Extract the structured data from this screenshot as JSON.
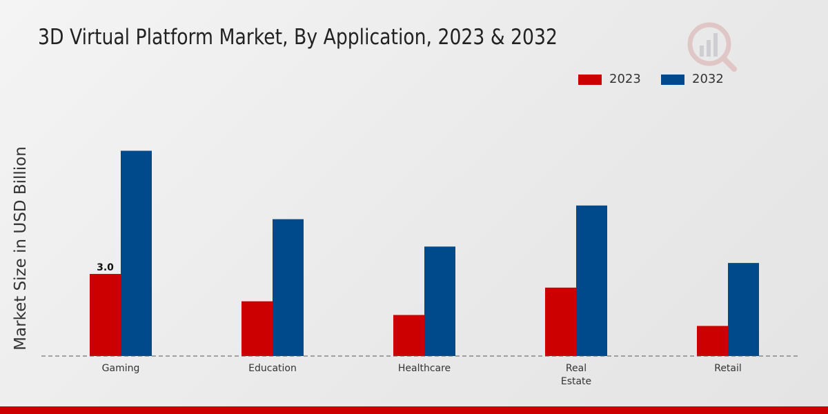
{
  "title": "3D Virtual Platform Market, By Application, 2023 & 2032",
  "colors": {
    "s2023": "#cc0000",
    "s2032": "#004a8c",
    "footer": "#cc0000"
  },
  "legend": [
    {
      "label": "2023",
      "color": "#cc0000"
    },
    {
      "label": "2032",
      "color": "#004a8c"
    }
  ],
  "chart_data": {
    "type": "bar",
    "title": "3D Virtual Platform Market, By Application, 2023 & 2032",
    "ylabel": "Market Size in USD Billion",
    "xlabel": "",
    "categories": [
      [
        "Gaming"
      ],
      [
        "Education"
      ],
      [
        "Healthcare"
      ],
      [
        "Real",
        "Estate"
      ],
      [
        "Retail"
      ]
    ],
    "series": [
      {
        "name": "2023",
        "color": "#cc0000",
        "values": [
          3.0,
          2.0,
          1.5,
          2.5,
          1.1
        ]
      },
      {
        "name": "2032",
        "color": "#004a8c",
        "values": [
          7.5,
          5.0,
          4.0,
          5.5,
          3.4
        ]
      }
    ],
    "data_labels": [
      {
        "series": 0,
        "index": 0,
        "text": "3.0"
      }
    ],
    "ylim": [
      0,
      12
    ],
    "grid": false,
    "legend_position": "top-right"
  }
}
